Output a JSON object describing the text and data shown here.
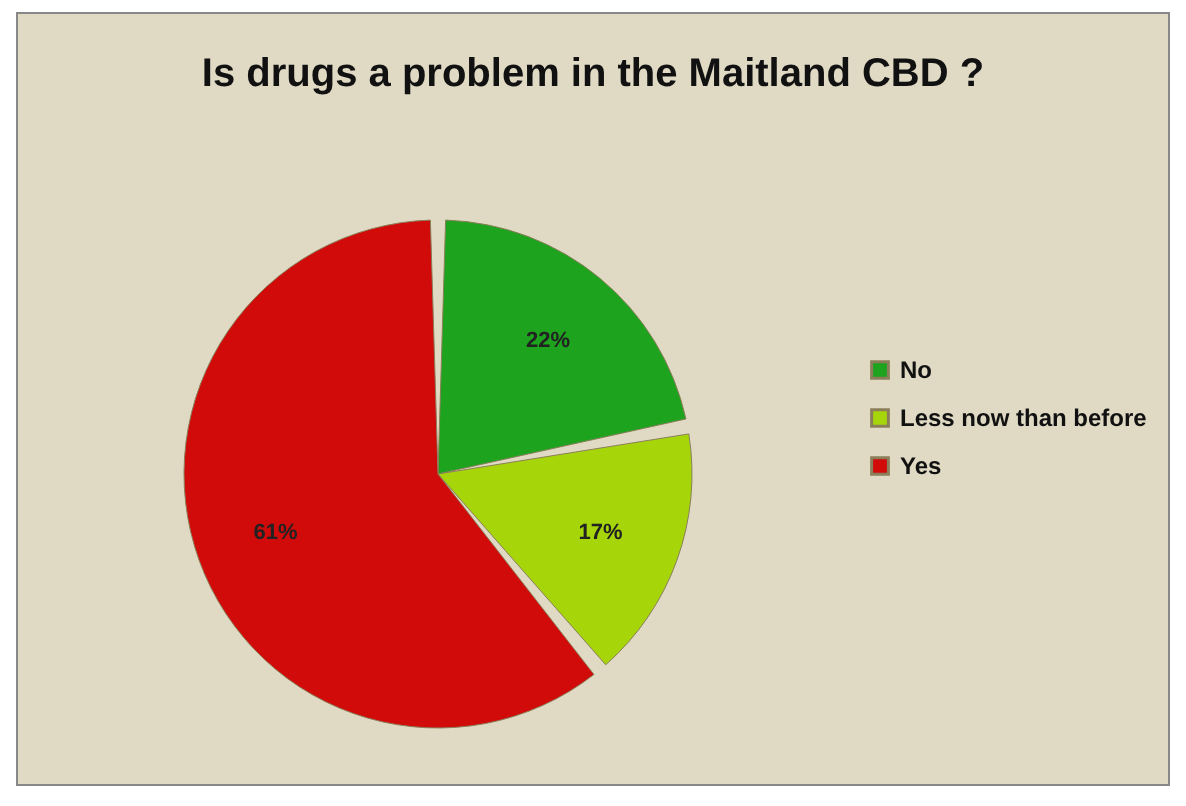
{
  "chart_data": {
    "type": "pie",
    "title": "Is drugs a problem in the Maitland CBD ?",
    "categories": [
      "No",
      "Less now than before",
      "Yes"
    ],
    "values": [
      22,
      17,
      61
    ],
    "colors": [
      "#1ea31e",
      "#a6d60a",
      "#d10a0a"
    ],
    "value_labels": [
      "22%",
      "17%",
      "61%"
    ],
    "legend": "right"
  }
}
